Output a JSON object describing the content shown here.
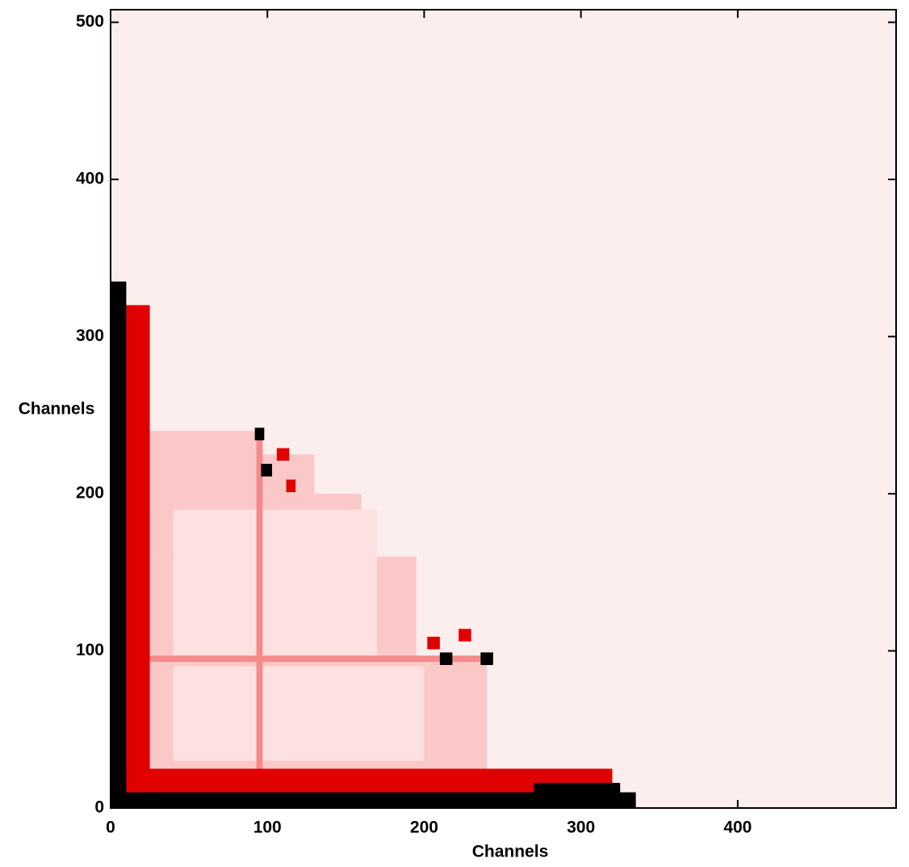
{
  "chart_data": {
    "type": "heatmap",
    "x_label": "Channels",
    "y_label": "Channels",
    "xlim": [
      0,
      501
    ],
    "ylim": [
      0,
      508
    ],
    "xticks": [
      0,
      100,
      200,
      300,
      400
    ],
    "yticks": [
      0,
      100,
      200,
      300,
      400,
      500
    ],
    "background": "#fdeeee",
    "colors": [
      "#fdeeee",
      "#fde0e0",
      "#fbc8c8",
      "#f48a8a",
      "#e00000",
      "#000000"
    ],
    "regions": [
      {
        "x": [
          12,
          240
        ],
        "y": [
          12,
          95
        ],
        "z": 2
      },
      {
        "x": [
          12,
          195
        ],
        "y": [
          95,
          160
        ],
        "z": 2
      },
      {
        "x": [
          12,
          160
        ],
        "y": [
          160,
          200
        ],
        "z": 2
      },
      {
        "x": [
          12,
          95
        ],
        "y": [
          200,
          240
        ],
        "z": 2
      },
      {
        "x": [
          95,
          130
        ],
        "y": [
          200,
          225
        ],
        "z": 2
      },
      {
        "x": [
          40,
          200
        ],
        "y": [
          30,
          90
        ],
        "z": 1
      },
      {
        "x": [
          40,
          170
        ],
        "y": [
          95,
          190
        ],
        "z": 1
      },
      {
        "x": [
          93,
          97
        ],
        "y": [
          12,
          240
        ],
        "z": 3
      },
      {
        "x": [
          12,
          240
        ],
        "y": [
          93,
          97
        ],
        "z": 3
      },
      {
        "x": [
          10,
          25
        ],
        "y": [
          0,
          320
        ],
        "z": 4
      },
      {
        "x": [
          0,
          320
        ],
        "y": [
          10,
          25
        ],
        "z": 4
      },
      {
        "x": [
          0,
          10
        ],
        "y": [
          0,
          335
        ],
        "z": 5
      },
      {
        "x": [
          0,
          335
        ],
        "y": [
          0,
          10
        ],
        "z": 5
      },
      {
        "x": [
          270,
          325
        ],
        "y": [
          8,
          16
        ],
        "z": 5
      },
      {
        "x": [
          92,
          98
        ],
        "y": [
          234,
          242
        ],
        "z": 5
      },
      {
        "x": [
          96,
          103
        ],
        "y": [
          211,
          219
        ],
        "z": 5
      },
      {
        "x": [
          106,
          114
        ],
        "y": [
          221,
          229
        ],
        "z": 4
      },
      {
        "x": [
          112,
          118
        ],
        "y": [
          201,
          209
        ],
        "z": 4
      },
      {
        "x": [
          202,
          210
        ],
        "y": [
          101,
          109
        ],
        "z": 4
      },
      {
        "x": [
          210,
          218
        ],
        "y": [
          91,
          99
        ],
        "z": 5
      },
      {
        "x": [
          222,
          230
        ],
        "y": [
          106,
          114
        ],
        "z": 4
      },
      {
        "x": [
          236,
          244
        ],
        "y": [
          91,
          99
        ],
        "z": 5
      }
    ]
  }
}
